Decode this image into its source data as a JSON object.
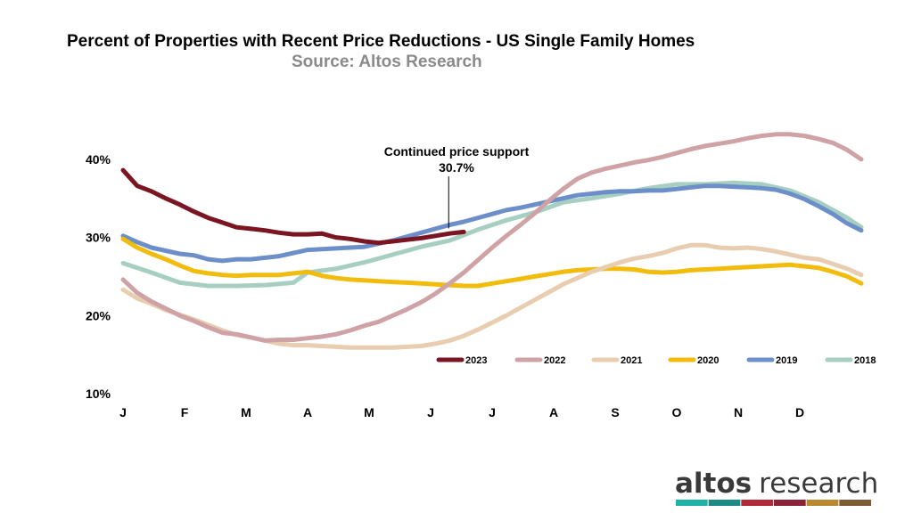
{
  "chart_data": {
    "type": "line",
    "title": "Percent of Properties with Recent Price Reductions - US Single Family Homes",
    "subtitle": "Source: Altos Research",
    "x_ticks": [
      "J",
      "F",
      "M",
      "A",
      "M",
      "J",
      "J",
      "A",
      "S",
      "O",
      "N",
      "D"
    ],
    "y_ticks": [
      "10%",
      "20%",
      "30%",
      "40%"
    ],
    "y_tick_values": [
      10,
      20,
      30,
      40
    ],
    "xlim": [
      1,
      53
    ],
    "ylim": [
      10,
      45
    ],
    "x_unit": "week of year",
    "grid": false,
    "legend_position": "bottom-right",
    "annotation": {
      "line1": "Continued price support",
      "line2": "30.7%",
      "x": 24,
      "y": 30.7
    },
    "series": [
      {
        "name": "2018",
        "color": "#a6cfc2",
        "points": [
          [
            1,
            26.7
          ],
          [
            3,
            25.5
          ],
          [
            5,
            24.2
          ],
          [
            7,
            23.8
          ],
          [
            9,
            23.8
          ],
          [
            11,
            23.9
          ],
          [
            13,
            24.2
          ],
          [
            14,
            25.5
          ],
          [
            16,
            26.0
          ],
          [
            18,
            26.8
          ],
          [
            20,
            27.8
          ],
          [
            22,
            28.8
          ],
          [
            24,
            29.6
          ],
          [
            26,
            31.0
          ],
          [
            28,
            32.2
          ],
          [
            30,
            33.2
          ],
          [
            32,
            34.5
          ],
          [
            34,
            35.0
          ],
          [
            36,
            35.6
          ],
          [
            38,
            36.3
          ],
          [
            40,
            36.8
          ],
          [
            42,
            36.8
          ],
          [
            44,
            37.0
          ],
          [
            46,
            36.8
          ],
          [
            48,
            36.0
          ],
          [
            50,
            34.5
          ],
          [
            52,
            32.5
          ],
          [
            53,
            31.3
          ]
        ]
      },
      {
        "name": "2019",
        "color": "#6d8fc9",
        "points": [
          [
            1,
            30.2
          ],
          [
            2,
            29.4
          ],
          [
            3,
            28.7
          ],
          [
            4,
            28.3
          ],
          [
            5,
            27.9
          ],
          [
            6,
            27.7
          ],
          [
            7,
            27.2
          ],
          [
            8,
            27.0
          ],
          [
            9,
            27.2
          ],
          [
            10,
            27.2
          ],
          [
            11,
            27.4
          ],
          [
            12,
            27.6
          ],
          [
            13,
            28.0
          ],
          [
            14,
            28.4
          ],
          [
            15,
            28.5
          ],
          [
            16,
            28.6
          ],
          [
            17,
            28.7
          ],
          [
            18,
            28.8
          ],
          [
            19,
            29.2
          ],
          [
            20,
            29.6
          ],
          [
            21,
            30.1
          ],
          [
            22,
            30.6
          ],
          [
            23,
            31.1
          ],
          [
            24,
            31.6
          ],
          [
            25,
            32.0
          ],
          [
            26,
            32.5
          ],
          [
            27,
            33.0
          ],
          [
            28,
            33.5
          ],
          [
            29,
            33.8
          ],
          [
            30,
            34.2
          ],
          [
            31,
            34.6
          ],
          [
            32,
            35.0
          ],
          [
            33,
            35.4
          ],
          [
            34,
            35.6
          ],
          [
            35,
            35.8
          ],
          [
            36,
            35.9
          ],
          [
            37,
            35.9
          ],
          [
            38,
            36.0
          ],
          [
            39,
            36.0
          ],
          [
            40,
            36.2
          ],
          [
            41,
            36.4
          ],
          [
            42,
            36.6
          ],
          [
            43,
            36.6
          ],
          [
            44,
            36.5
          ],
          [
            45,
            36.4
          ],
          [
            46,
            36.3
          ],
          [
            47,
            36.1
          ],
          [
            48,
            35.6
          ],
          [
            49,
            34.9
          ],
          [
            50,
            34.0
          ],
          [
            51,
            33.0
          ],
          [
            52,
            31.8
          ],
          [
            53,
            30.9
          ]
        ]
      },
      {
        "name": "2020",
        "color": "#f2bc0c",
        "points": [
          [
            1,
            29.8
          ],
          [
            2,
            28.7
          ],
          [
            3,
            27.9
          ],
          [
            4,
            27.2
          ],
          [
            5,
            26.4
          ],
          [
            6,
            25.7
          ],
          [
            7,
            25.4
          ],
          [
            8,
            25.2
          ],
          [
            9,
            25.1
          ],
          [
            10,
            25.2
          ],
          [
            11,
            25.2
          ],
          [
            12,
            25.2
          ],
          [
            13,
            25.4
          ],
          [
            14,
            25.6
          ],
          [
            15,
            25.1
          ],
          [
            16,
            24.8
          ],
          [
            17,
            24.6
          ],
          [
            18,
            24.5
          ],
          [
            19,
            24.4
          ],
          [
            20,
            24.3
          ],
          [
            21,
            24.2
          ],
          [
            22,
            24.1
          ],
          [
            23,
            24.0
          ],
          [
            24,
            23.9
          ],
          [
            25,
            23.8
          ],
          [
            26,
            23.8
          ],
          [
            27,
            24.1
          ],
          [
            28,
            24.4
          ],
          [
            29,
            24.7
          ],
          [
            30,
            25.0
          ],
          [
            31,
            25.3
          ],
          [
            32,
            25.6
          ],
          [
            33,
            25.8
          ],
          [
            34,
            25.9
          ],
          [
            35,
            26.0
          ],
          [
            36,
            26.0
          ],
          [
            37,
            25.9
          ],
          [
            38,
            25.6
          ],
          [
            39,
            25.5
          ],
          [
            40,
            25.6
          ],
          [
            41,
            25.8
          ],
          [
            42,
            25.9
          ],
          [
            43,
            26.0
          ],
          [
            44,
            26.1
          ],
          [
            45,
            26.2
          ],
          [
            46,
            26.3
          ],
          [
            47,
            26.4
          ],
          [
            48,
            26.5
          ],
          [
            49,
            26.3
          ],
          [
            50,
            26.1
          ],
          [
            51,
            25.6
          ],
          [
            52,
            25.0
          ],
          [
            53,
            24.1
          ]
        ]
      },
      {
        "name": "2021",
        "color": "#e8cdb0",
        "points": [
          [
            1,
            23.3
          ],
          [
            2,
            22.2
          ],
          [
            3,
            21.5
          ],
          [
            4,
            20.7
          ],
          [
            5,
            20.1
          ],
          [
            6,
            19.5
          ],
          [
            7,
            18.8
          ],
          [
            8,
            18.1
          ],
          [
            9,
            17.5
          ],
          [
            10,
            17.2
          ],
          [
            11,
            16.8
          ],
          [
            12,
            16.4
          ],
          [
            13,
            16.2
          ],
          [
            14,
            16.2
          ],
          [
            15,
            16.1
          ],
          [
            16,
            16.0
          ],
          [
            17,
            15.9
          ],
          [
            18,
            15.9
          ],
          [
            19,
            15.9
          ],
          [
            20,
            15.9
          ],
          [
            21,
            16.0
          ],
          [
            22,
            16.1
          ],
          [
            23,
            16.4
          ],
          [
            24,
            16.8
          ],
          [
            25,
            17.4
          ],
          [
            26,
            18.2
          ],
          [
            27,
            19.1
          ],
          [
            28,
            20.0
          ],
          [
            29,
            21.0
          ],
          [
            30,
            22.0
          ],
          [
            31,
            23.0
          ],
          [
            32,
            24.0
          ],
          [
            33,
            24.8
          ],
          [
            34,
            25.6
          ],
          [
            35,
            26.2
          ],
          [
            36,
            26.8
          ],
          [
            37,
            27.3
          ],
          [
            38,
            27.6
          ],
          [
            39,
            28.0
          ],
          [
            40,
            28.6
          ],
          [
            41,
            29.0
          ],
          [
            42,
            29.0
          ],
          [
            43,
            28.7
          ],
          [
            44,
            28.6
          ],
          [
            45,
            28.7
          ],
          [
            46,
            28.5
          ],
          [
            47,
            28.2
          ],
          [
            48,
            27.8
          ],
          [
            49,
            27.4
          ],
          [
            50,
            27.2
          ],
          [
            51,
            26.6
          ],
          [
            52,
            26.0
          ],
          [
            53,
            25.2
          ]
        ]
      },
      {
        "name": "2022",
        "color": "#cfa2a6",
        "points": [
          [
            1,
            24.6
          ],
          [
            2,
            22.9
          ],
          [
            3,
            21.8
          ],
          [
            4,
            20.9
          ],
          [
            5,
            20.0
          ],
          [
            6,
            19.3
          ],
          [
            7,
            18.5
          ],
          [
            8,
            17.8
          ],
          [
            9,
            17.6
          ],
          [
            10,
            17.2
          ],
          [
            11,
            16.8
          ],
          [
            12,
            16.9
          ],
          [
            13,
            16.9
          ],
          [
            14,
            17.1
          ],
          [
            15,
            17.3
          ],
          [
            16,
            17.6
          ],
          [
            17,
            18.1
          ],
          [
            18,
            18.7
          ],
          [
            19,
            19.2
          ],
          [
            20,
            20.0
          ],
          [
            21,
            20.8
          ],
          [
            22,
            21.7
          ],
          [
            23,
            22.8
          ],
          [
            24,
            24.1
          ],
          [
            25,
            25.5
          ],
          [
            26,
            27.1
          ],
          [
            27,
            28.7
          ],
          [
            28,
            30.2
          ],
          [
            29,
            31.6
          ],
          [
            30,
            33.1
          ],
          [
            31,
            34.7
          ],
          [
            32,
            36.2
          ],
          [
            33,
            37.5
          ],
          [
            34,
            38.3
          ],
          [
            35,
            38.8
          ],
          [
            36,
            39.2
          ],
          [
            37,
            39.6
          ],
          [
            38,
            39.9
          ],
          [
            39,
            40.3
          ],
          [
            40,
            40.8
          ],
          [
            41,
            41.3
          ],
          [
            42,
            41.7
          ],
          [
            43,
            42.0
          ],
          [
            44,
            42.3
          ],
          [
            45,
            42.7
          ],
          [
            46,
            43.0
          ],
          [
            47,
            43.2
          ],
          [
            48,
            43.2
          ],
          [
            49,
            43.0
          ],
          [
            50,
            42.6
          ],
          [
            51,
            42.1
          ],
          [
            52,
            41.2
          ],
          [
            53,
            40.0
          ]
        ]
      },
      {
        "name": "2023",
        "color": "#7b1521",
        "points": [
          [
            1,
            38.6
          ],
          [
            2,
            36.6
          ],
          [
            3,
            35.9
          ],
          [
            4,
            35.0
          ],
          [
            5,
            34.2
          ],
          [
            6,
            33.3
          ],
          [
            7,
            32.5
          ],
          [
            8,
            31.9
          ],
          [
            9,
            31.3
          ],
          [
            10,
            31.1
          ],
          [
            11,
            30.9
          ],
          [
            12,
            30.6
          ],
          [
            13,
            30.4
          ],
          [
            14,
            30.4
          ],
          [
            15,
            30.5
          ],
          [
            16,
            30.0
          ],
          [
            17,
            29.8
          ],
          [
            18,
            29.5
          ],
          [
            19,
            29.3
          ],
          [
            20,
            29.5
          ],
          [
            21,
            29.7
          ],
          [
            22,
            29.9
          ],
          [
            23,
            30.2
          ],
          [
            24,
            30.5
          ],
          [
            25,
            30.7
          ]
        ]
      }
    ]
  },
  "logo": {
    "text_a": "altos",
    "text_b": "research",
    "stripe_colors": [
      "#1fb2a6",
      "#1c8b86",
      "#b22a3a",
      "#8a2238",
      "#b98a2d",
      "#7f5b35"
    ]
  }
}
